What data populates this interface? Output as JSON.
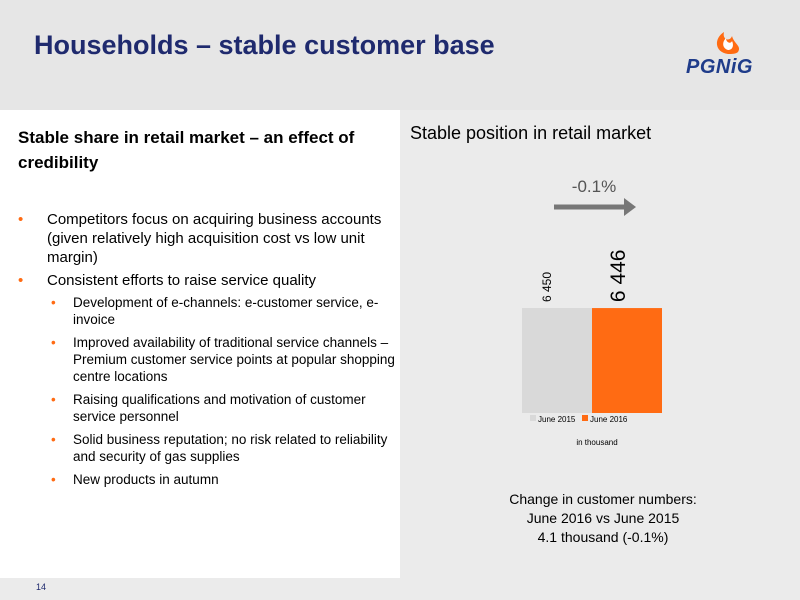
{
  "header": {
    "title": "Households – stable customer base",
    "logo_text": "PGNiG",
    "logo_color": "#ff6b13"
  },
  "left": {
    "heading": "Stable share in retail market – an effect of credibility",
    "bullets": [
      {
        "text": "Competitors focus on acquiring business accounts (given relatively high acquisition cost vs low unit margin)",
        "sub": []
      },
      {
        "text": "Consistent efforts to raise service quality",
        "sub": [
          "Development of e-channels: e-customer service, e-invoice",
          "Improved availability of traditional service channels – Premium customer service points at popular shopping centre locations",
          "Raising qualifications and motivation of customer service personnel",
          "Solid business reputation; no risk related to reliability and security of gas supplies",
          "New products in autumn"
        ]
      }
    ]
  },
  "right": {
    "title": "Stable position in retail market",
    "change_line1": "Change in customer numbers:",
    "change_line2": "June 2016 vs June 2015",
    "change_line3": "4.1 thousand (-0.1%)"
  },
  "footer": {
    "page_number": "14"
  },
  "chart_data": {
    "type": "bar",
    "categories": [
      "June 2015",
      "June 2016"
    ],
    "values": [
      6450,
      6446
    ],
    "value_labels": [
      "6 450",
      "6 446"
    ],
    "colors": [
      "#d9d9d9",
      "#ff6b13"
    ],
    "unit_label": "in thousand",
    "change_label": "-0.1%",
    "legend_position": "bottom"
  }
}
